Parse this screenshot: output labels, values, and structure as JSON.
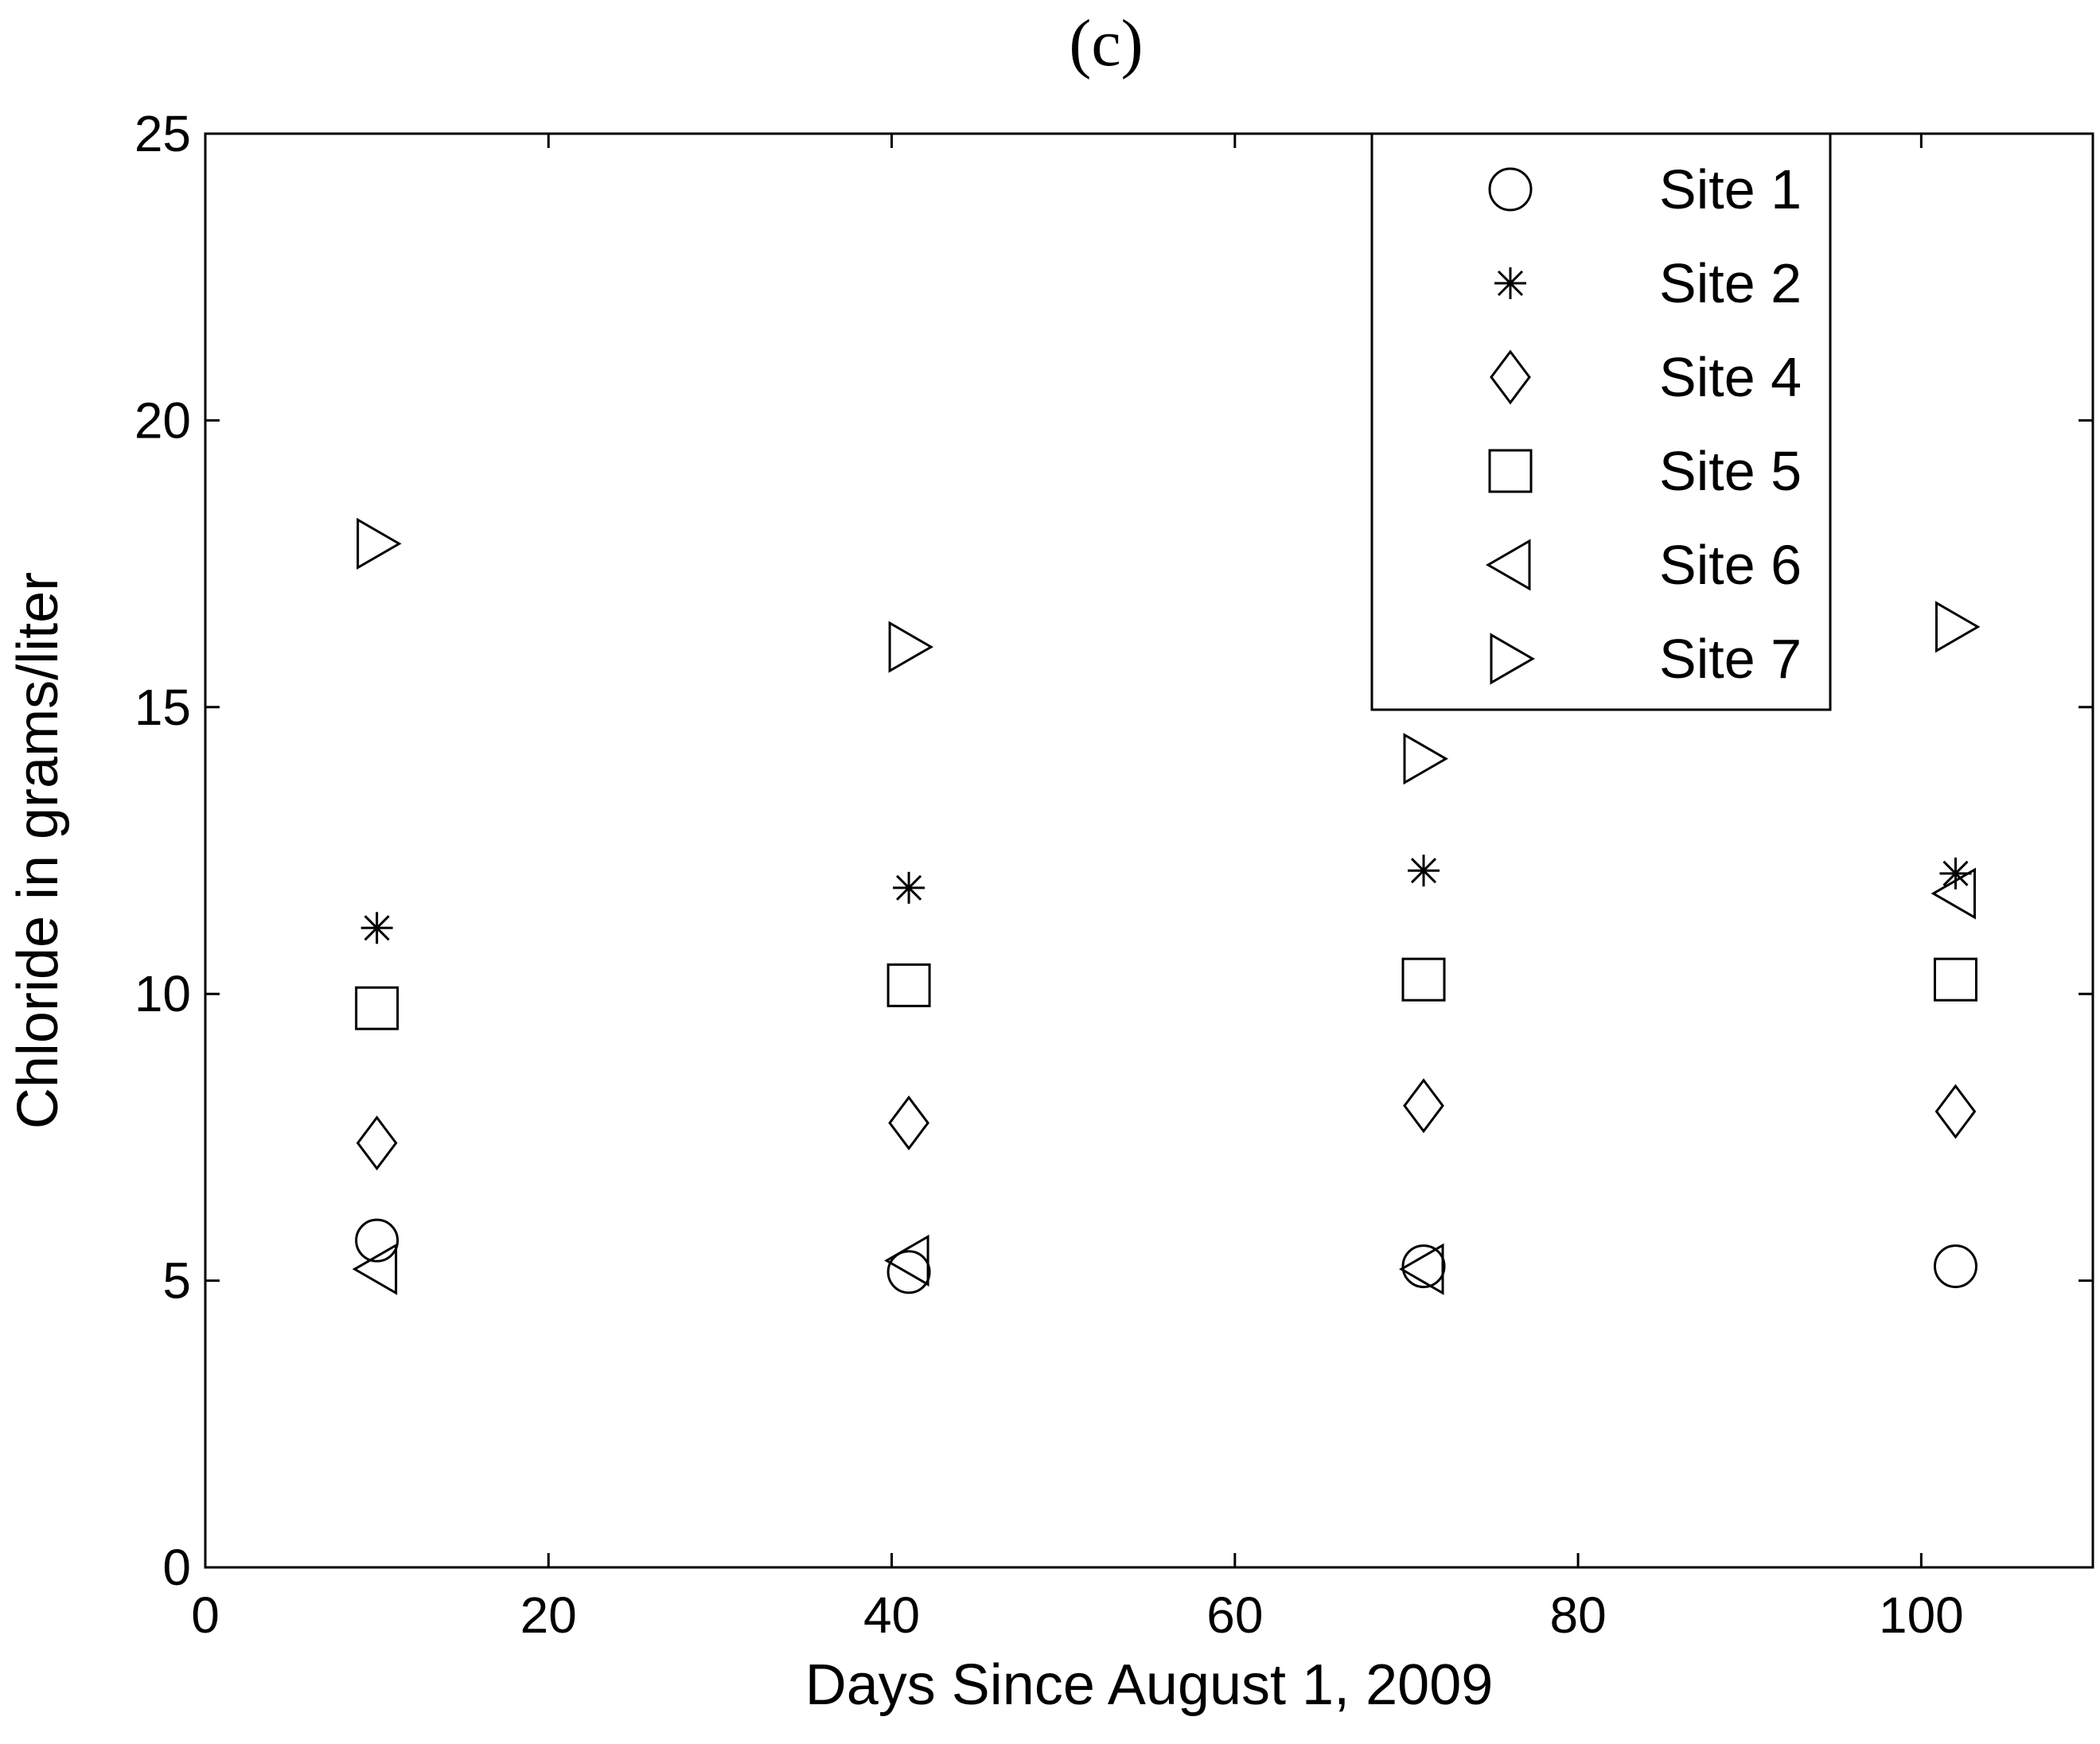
{
  "chart_data": {
    "type": "scatter",
    "title": "(c)",
    "xlabel": "Days Since August 1, 2009",
    "ylabel": "Chloride in grams/liter",
    "xlim": [
      0,
      110
    ],
    "ylim": [
      0,
      25
    ],
    "xticks": [
      0,
      20,
      40,
      60,
      80,
      100
    ],
    "yticks": [
      0,
      5,
      10,
      15,
      20,
      25
    ],
    "grid": false,
    "legend_position": "top-right",
    "series": [
      {
        "name": "Site 1",
        "marker": "circle",
        "points": [
          [
            10,
            5.7
          ],
          [
            41,
            5.15
          ],
          [
            71,
            5.25
          ],
          [
            102,
            5.25
          ]
        ]
      },
      {
        "name": "Site 2",
        "marker": "asterisk",
        "points": [
          [
            10,
            11.15
          ],
          [
            41,
            11.85
          ],
          [
            71,
            12.15
          ],
          [
            102,
            12.1
          ]
        ]
      },
      {
        "name": "Site 4",
        "marker": "diamond",
        "points": [
          [
            10,
            7.4
          ],
          [
            41,
            7.75
          ],
          [
            71,
            8.05
          ],
          [
            102,
            7.95
          ]
        ]
      },
      {
        "name": "Site 5",
        "marker": "square",
        "points": [
          [
            10,
            9.75
          ],
          [
            41,
            10.15
          ],
          [
            71,
            10.25
          ],
          [
            102,
            10.25
          ]
        ]
      },
      {
        "name": "Site 6",
        "marker": "triangle-left",
        "points": [
          [
            10,
            5.2
          ],
          [
            41,
            5.35
          ],
          [
            71,
            5.2
          ],
          [
            102,
            11.75
          ]
        ]
      },
      {
        "name": "Site 7",
        "marker": "triangle-right",
        "points": [
          [
            10,
            17.85
          ],
          [
            41,
            16.05
          ],
          [
            71,
            14.1
          ],
          [
            102,
            16.4
          ]
        ]
      }
    ]
  }
}
